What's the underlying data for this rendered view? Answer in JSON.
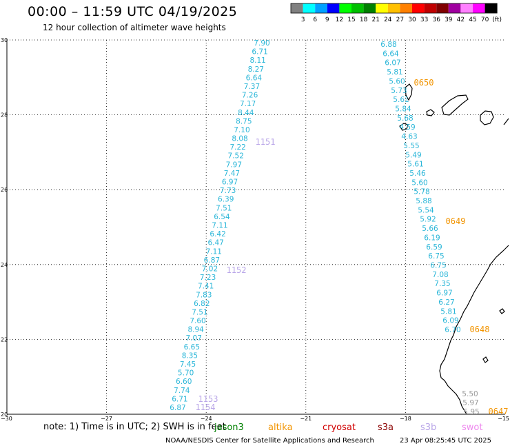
{
  "header": {
    "title": "00:00 – 11:59 UTC 04/19/2025",
    "subtitle": "12 hour collection of altimeter wave heights"
  },
  "colorbar": {
    "colors": [
      "#808080",
      "#00ffff",
      "#00a0ff",
      "#0000ff",
      "#00ff00",
      "#00c000",
      "#008000",
      "#ffff00",
      "#ffc000",
      "#ff8000",
      "#ff0000",
      "#c00000",
      "#800000",
      "#a000a0",
      "#ff80ff",
      "#ff00ff",
      "#000000"
    ],
    "labels": [
      "3",
      "6",
      "9",
      "12",
      "15",
      "18",
      "21",
      "24",
      "27",
      "30",
      "33",
      "36",
      "39",
      "42",
      "45",
      "70",
      "(ft)"
    ]
  },
  "axes": {
    "lat_ticks": [
      "30",
      "28",
      "26",
      "24",
      "22",
      "20"
    ],
    "lon_ticks": [
      "−30",
      "−27",
      "−24",
      "−21",
      "−18",
      "−15"
    ]
  },
  "tracks": [
    {
      "name": "west",
      "color": "#2ab6d8",
      "values": [
        "7.90",
        "6.71",
        "8.11",
        "8.27",
        "6.64",
        "7.37",
        "7.26",
        "7.17",
        "8.44",
        "8.75",
        "7.10",
        "8.08",
        "7.22",
        "7.52",
        "7.97",
        "7.47",
        "6.97",
        "7.73",
        "6.39",
        "7.51",
        "6.54",
        "7.11",
        "6.42",
        "6.47",
        "7.11",
        "6.87",
        "7.02",
        "7.23",
        "7.41",
        "7.83",
        "6.82",
        "7.51",
        "7.60",
        "8.94",
        "7.07",
        "6.65",
        "8.35",
        "7.45",
        "5.70",
        "6.60",
        "7.74",
        "6.71",
        "6.87"
      ]
    },
    {
      "name": "east",
      "color": "#2ab6d8",
      "values": [
        "6.88",
        "6.64",
        "6.07",
        "5.81",
        "5.60",
        "5.73",
        "5.61",
        "5.84",
        "5.68",
        "4.59",
        "4.63",
        "5.55",
        "5.49",
        "5.61",
        "5.46",
        "5.60",
        "5.78",
        "5.88",
        "5.54",
        "5.92",
        "5.66",
        "6.19",
        "6.59",
        "6.75",
        "6.75",
        "7.08",
        "7.35",
        "6.97",
        "6.27",
        "5.81",
        "6.09",
        "6.70"
      ]
    },
    {
      "name": "south-tail",
      "color": "#9a9a9a",
      "values": [
        "5.50",
        "5.97",
        "5.95"
      ]
    }
  ],
  "time_labels": [
    {
      "text": "1151",
      "color": "#b9a6e8"
    },
    {
      "text": "1152",
      "color": "#b9a6e8"
    },
    {
      "text": "1153",
      "color": "#b9a6e8"
    },
    {
      "text": "1154",
      "color": "#b9a6e8"
    },
    {
      "text": "0650",
      "color": "#f29400"
    },
    {
      "text": "0649",
      "color": "#f29400"
    },
    {
      "text": "0648",
      "color": "#f29400"
    },
    {
      "text": "0647",
      "color": "#f29400"
    }
  ],
  "footer": {
    "note": "note:  1) Time is in UTC;  2) SWH is in feet",
    "legend": [
      {
        "text": "jason3",
        "color": "#008000"
      },
      {
        "text": "altika",
        "color": "#f29400"
      },
      {
        "text": "cryosat",
        "color": "#d00000"
      },
      {
        "text": "s3a",
        "color": "#8b0000"
      },
      {
        "text": "s3b",
        "color": "#b9a6e8"
      },
      {
        "text": "swot",
        "color": "#ee88ee"
      }
    ],
    "credit": "NOAA/NESDIS Center for Satellite Applications and Research",
    "timestamp": "23 Apr 08:25:45 UTC 2025"
  }
}
